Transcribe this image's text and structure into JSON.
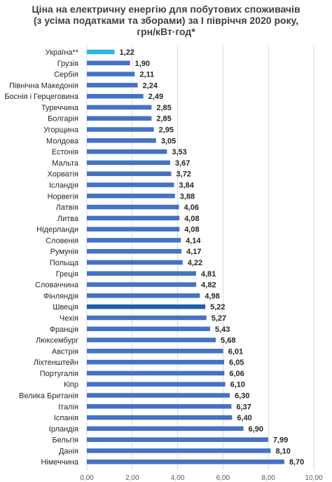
{
  "chart_data": {
    "type": "bar",
    "orientation": "horizontal",
    "title_lines": [
      "Ціна на електричну енергію для побутових споживачів",
      "(з усіма податками та зборами) за І  півріччя 2020 року,",
      "грн/кВт·год*"
    ],
    "categories": [
      "Україна**",
      "Грузія",
      "Сербія",
      "Північна Македонія",
      "Боснія і Герцеговина",
      "Туреччина",
      "Болгарія",
      "Угорщина",
      "Молдова",
      "Естонія",
      "Мальта",
      "Хорватія",
      "Ісландія",
      "Норвегія",
      "Латвія",
      "Литва",
      "Нідерланди",
      "Словенія",
      "Румунія",
      "Польща",
      "Греція",
      "Словаччина",
      "Фінляндія",
      "Швеція",
      "Чехія",
      "Франція",
      "Люксембург",
      "Австрія",
      "Ліхтенштейн",
      "Португалія",
      "Кіпр",
      "Велика Британія",
      "Італія",
      "Іспанія",
      "Ірландія",
      "Бельгія",
      "Данія",
      "Німеччина"
    ],
    "values": [
      1.22,
      1.9,
      2.11,
      2.24,
      2.49,
      2.85,
      2.85,
      2.95,
      3.05,
      3.53,
      3.67,
      3.72,
      3.84,
      3.88,
      4.06,
      4.08,
      4.08,
      4.14,
      4.17,
      4.22,
      4.81,
      4.82,
      4.98,
      5.22,
      5.27,
      5.43,
      5.68,
      6.01,
      6.05,
      6.06,
      6.1,
      6.3,
      6.37,
      6.4,
      6.9,
      7.99,
      8.1,
      8.7
    ],
    "value_labels": [
      "1,22",
      "1,90",
      "2,11",
      "2,24",
      "2,49",
      "2,85",
      "2,85",
      "2,95",
      "3,05",
      "3,53",
      "3,67",
      "3,72",
      "3,84",
      "3,88",
      "4,06",
      "4,08",
      "4,08",
      "4,14",
      "4,17",
      "4,22",
      "4,81",
      "4,82",
      "4,98",
      "5,22",
      "5,27",
      "5,43",
      "5,68",
      "6,01",
      "6,05",
      "6,06",
      "6,10",
      "6,30",
      "6,37",
      "6,40",
      "6,90",
      "7,99",
      "8,10",
      "8,70"
    ],
    "xlim": [
      0,
      10
    ],
    "x_ticks": [
      "0,00",
      "2,00",
      "4,00",
      "6,00",
      "8,00",
      "10,00"
    ],
    "grid": true,
    "colors": {
      "default": "#4472C4",
      "highlight_ukraine": "#29B6E8",
      "highlight_sweden": "#1F5FA8",
      "grid": "#D9D9D9"
    }
  }
}
